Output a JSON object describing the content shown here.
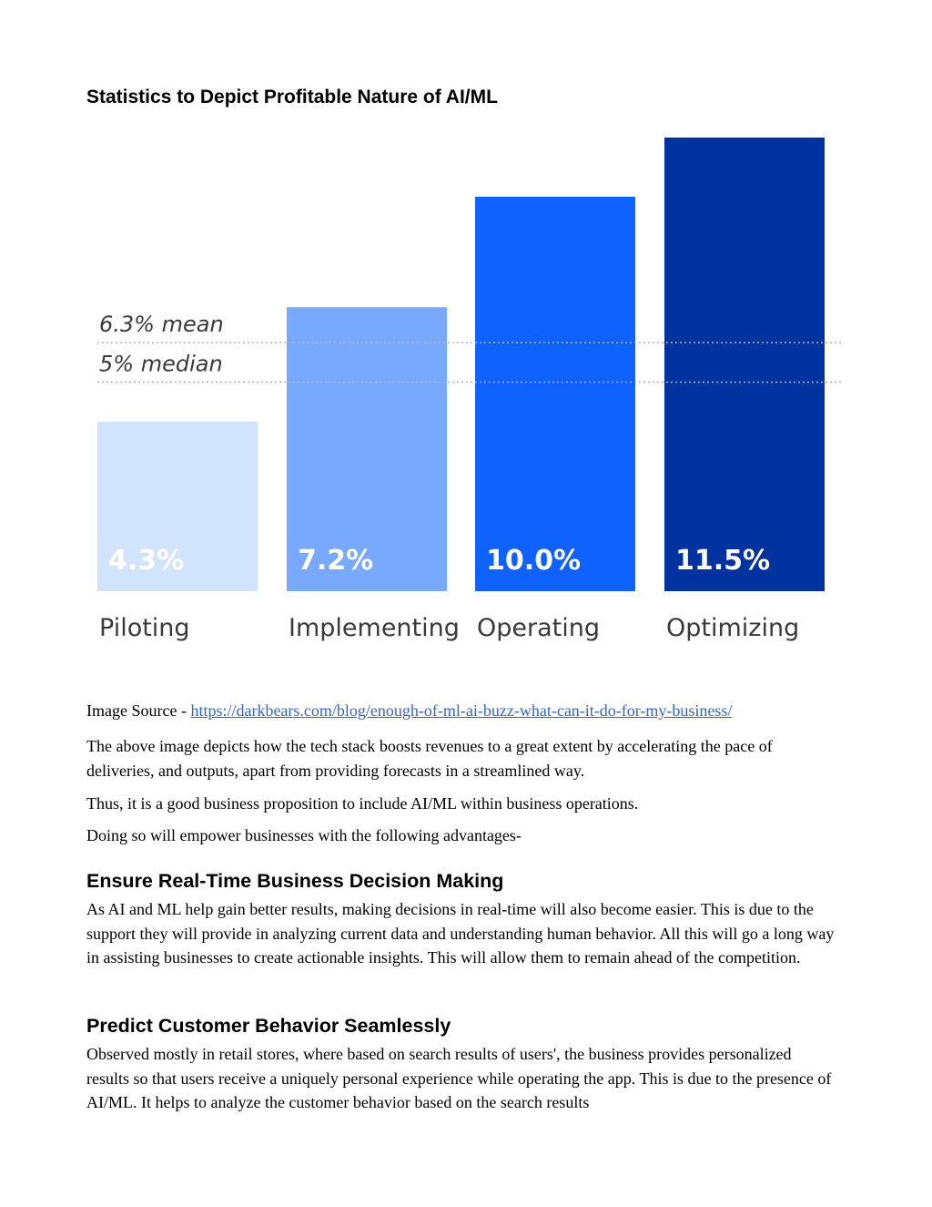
{
  "document": {
    "title": "Statistics to Depict Profitable Nature of AI/ML",
    "source_prefix": "Image Source - ",
    "source_link": "https://darkbears.com/blog/enough-of-ml-ai-buzz-what-can-it-do-for-my-business/",
    "paragraphs": [
      "The above image depicts how the tech stack boosts revenues to a great extent by accelerating the pace of deliveries, and outputs, apart from providing forecasts in a streamlined way.",
      "Thus, it is a good business proposition to include AI/ML within business operations.",
      "Doing so will empower businesses with the following advantages-"
    ],
    "sections": [
      {
        "heading": "Ensure Real-Time Business Decision Making",
        "body": "As AI and ML help gain better results, making decisions in real-time will also become easier. This is due to the support they will provide in analyzing current data and understanding human behavior. All this will go a long way in assisting businesses to create actionable insights. This will allow them to remain ahead of the competition."
      },
      {
        "heading": "Predict Customer Behavior Seamlessly",
        "body": "Observed mostly in retail stores, where based on search results of users', the business provides personalized results so that users receive a uniquely personal experience while operating the app. This is due to the presence of AI/ML. It helps to analyze the customer behavior based on the search results"
      }
    ]
  },
  "chart_data": {
    "type": "bar",
    "title": "",
    "xlabel": "",
    "ylabel": "",
    "categories": [
      "Piloting",
      "Implementing",
      "Operating",
      "Optimizing"
    ],
    "values": [
      4.3,
      7.2,
      10.0,
      11.5
    ],
    "value_labels": [
      "4.3%",
      "7.2%",
      "10.0%",
      "11.5%"
    ],
    "colors": [
      "#d2e3fc",
      "#78a9ff",
      "#0f62fe",
      "#0033a0"
    ],
    "reference_lines": [
      {
        "label": "6.3% mean",
        "value": 6.3
      },
      {
        "label": "5% median",
        "value": 5.3
      }
    ],
    "ylim": [
      0,
      11.5
    ],
    "grid": false,
    "legend": "none"
  }
}
